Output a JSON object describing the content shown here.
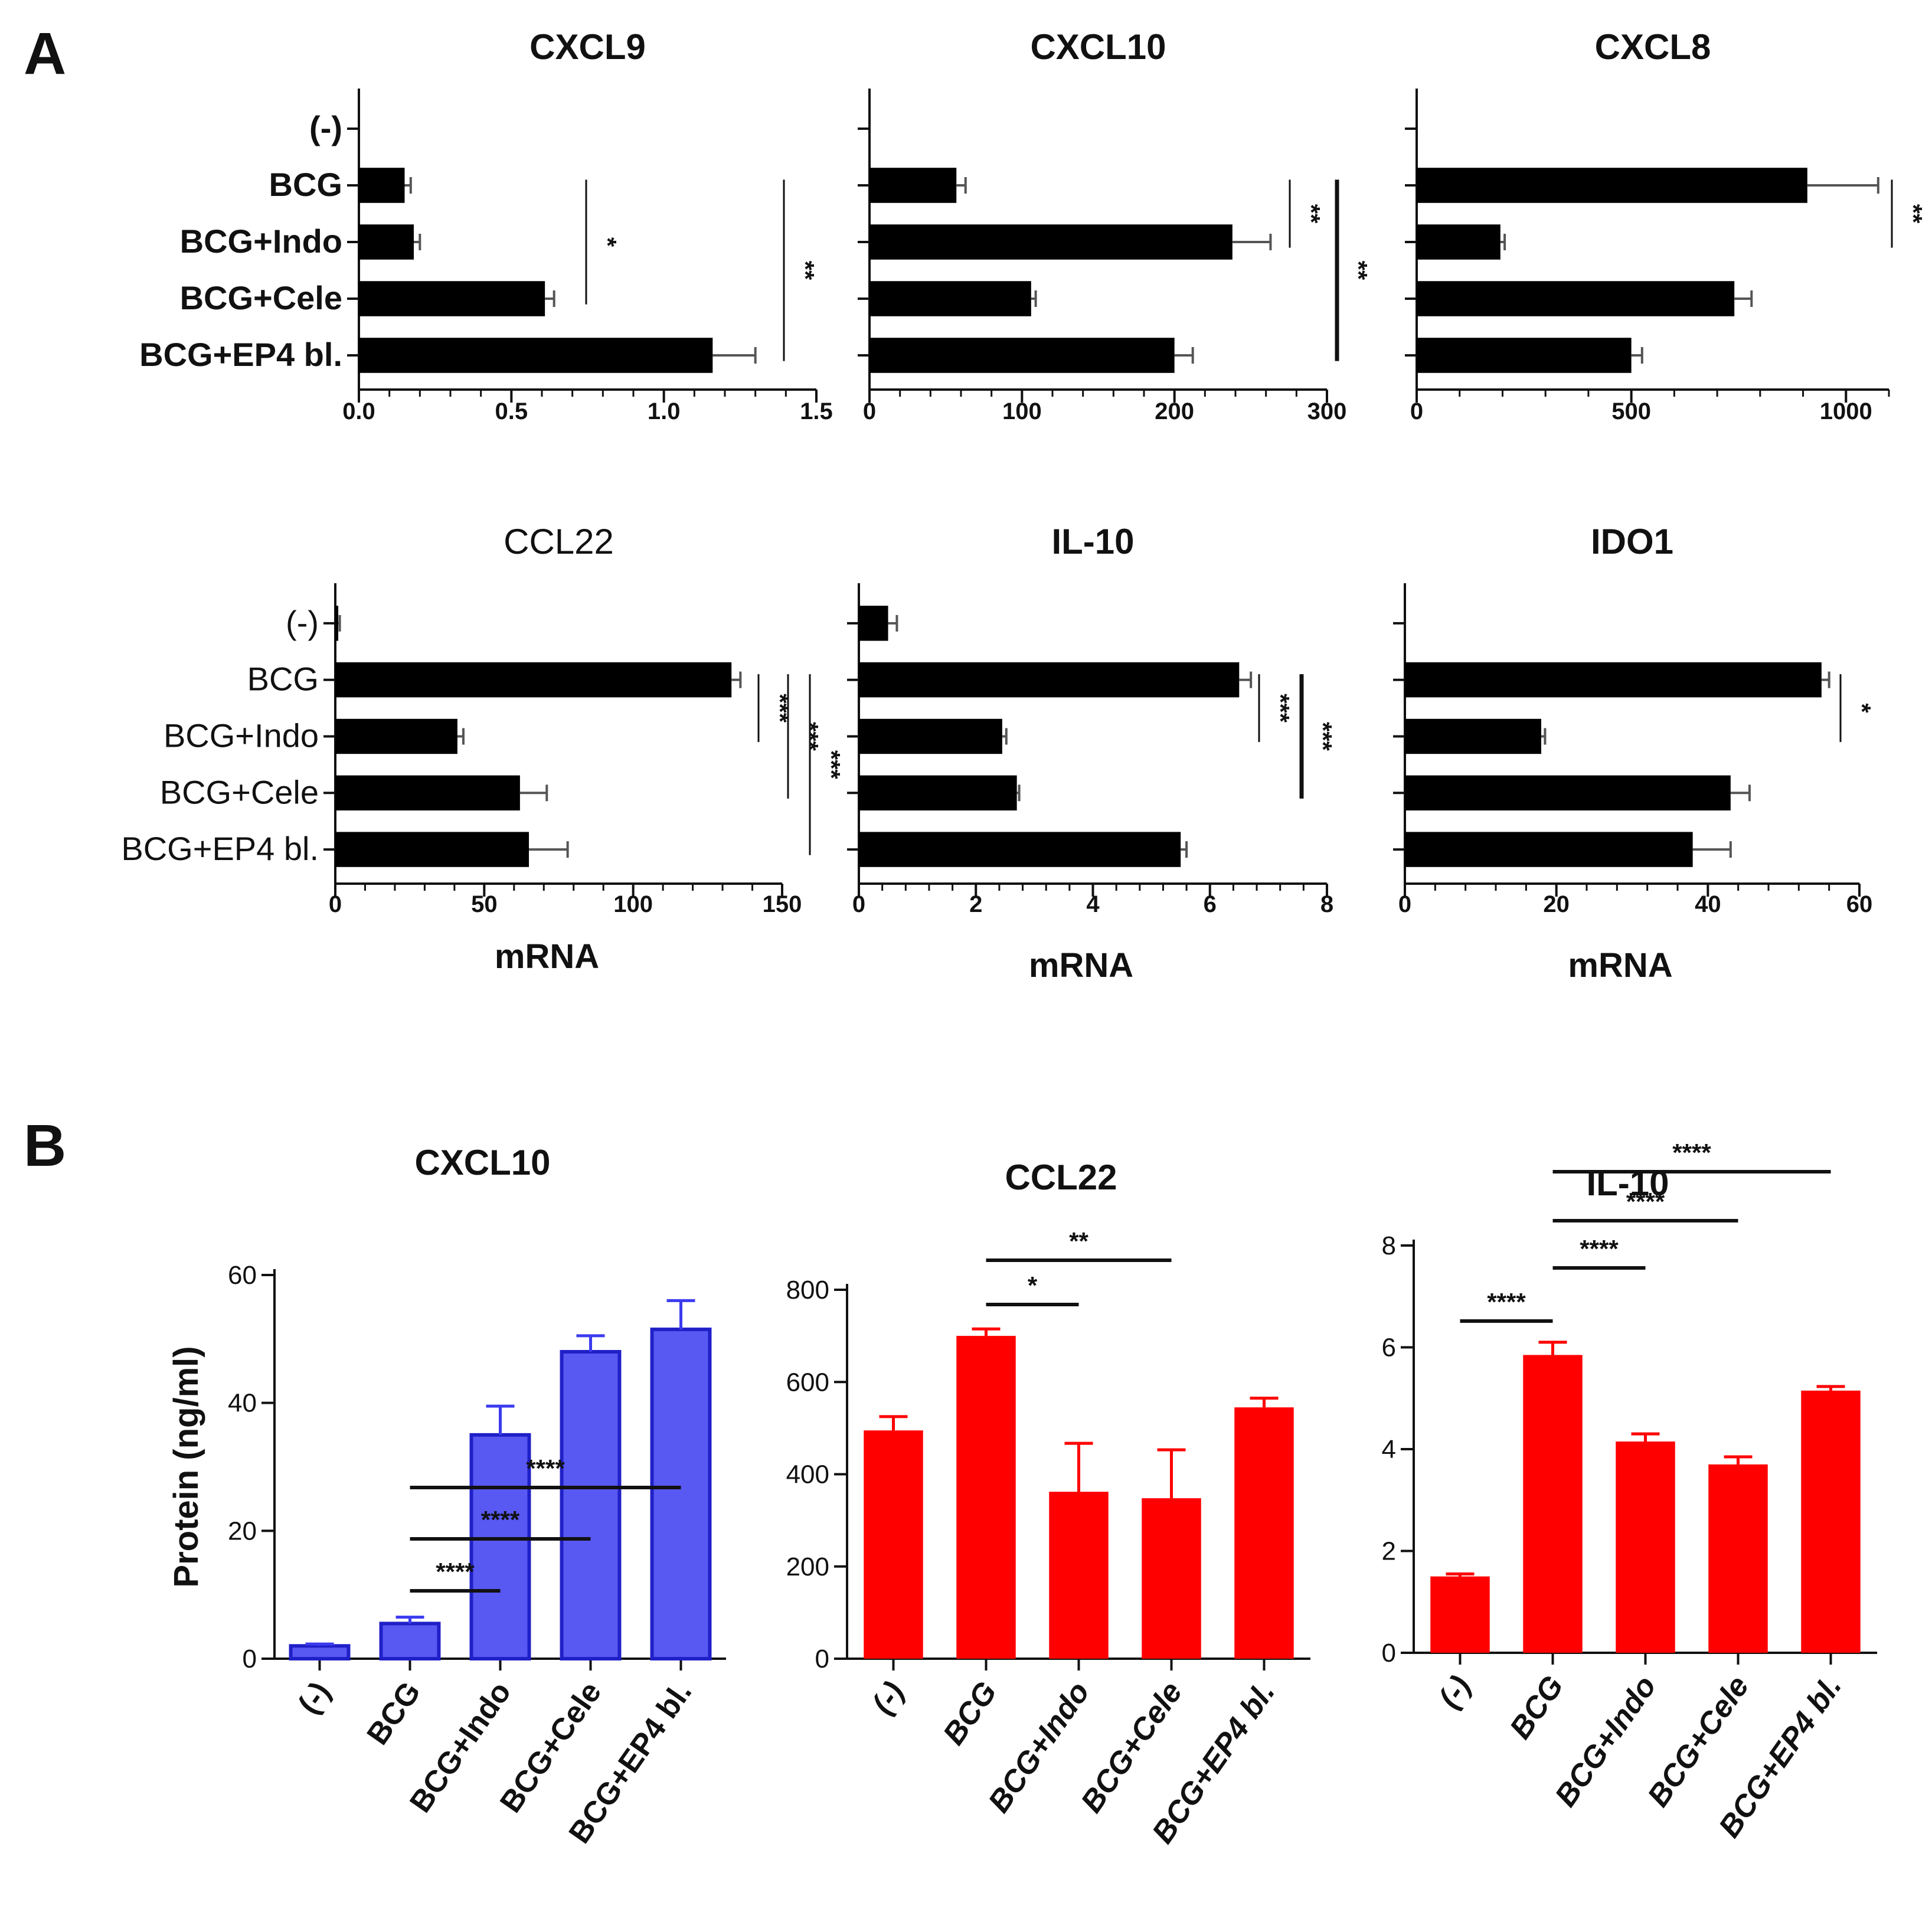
{
  "panels": {
    "a": "A",
    "b": "B"
  },
  "chart_data": [
    {
      "type": "bar",
      "orientation": "horizontal",
      "panel": "A",
      "title": "CXCL9",
      "categories": [
        "(-)",
        "BCG",
        "BCG+Indo",
        "BCG+Cele",
        "BCG+EP4 bl."
      ],
      "values": [
        0,
        0.15,
        0.18,
        0.61,
        1.16
      ],
      "errors": [
        0,
        0.02,
        0.02,
        0.03,
        0.14
      ],
      "xlim": [
        0,
        1.5
      ],
      "ticks": [
        "0.0",
        "0.5",
        "1.0",
        "1.5"
      ],
      "xlabel": "",
      "significance": [
        {
          "from": "BCG",
          "to": "BCG+Cele",
          "label": "*"
        },
        {
          "from": "BCG",
          "to": "BCG+EP4 bl.",
          "label": "**"
        }
      ]
    },
    {
      "type": "bar",
      "orientation": "horizontal",
      "panel": "A",
      "title": "CXCL10",
      "categories": [
        "(-)",
        "BCG",
        "BCG+Indo",
        "BCG+Cele",
        "BCG+EP4 bl."
      ],
      "values": [
        0,
        57,
        238,
        106,
        200
      ],
      "errors": [
        0,
        6,
        25,
        3,
        12
      ],
      "xlim": [
        0,
        300
      ],
      "ticks": [
        "0",
        "100",
        "200",
        "300"
      ],
      "xlabel": "",
      "significance": [
        {
          "from": "BCG",
          "to": "BCG+Indo",
          "label": "**"
        },
        {
          "from": "BCG",
          "to": "BCG+EP4 bl.",
          "label": "**"
        }
      ]
    },
    {
      "type": "bar",
      "orientation": "horizontal",
      "panel": "A",
      "title": "CXCL8",
      "categories": [
        "(-)",
        "BCG",
        "BCG+Indo",
        "BCG+Cele",
        "BCG+EP4 bl."
      ],
      "values": [
        0,
        910,
        195,
        740,
        500
      ],
      "errors": [
        0,
        165,
        10,
        40,
        25
      ],
      "xlim": [
        0,
        1100
      ],
      "ticks": [
        "0",
        "500",
        "1000"
      ],
      "xlabel": "",
      "significance": [
        {
          "from": "BCG",
          "to": "BCG+Indo",
          "label": "**"
        }
      ]
    },
    {
      "type": "bar",
      "orientation": "horizontal",
      "panel": "A",
      "title": "CCL22",
      "categories": [
        "(-)",
        "BCG",
        "BCG+Indo",
        "BCG+Cele",
        "BCG+EP4 bl."
      ],
      "values": [
        1,
        133,
        41,
        62,
        65
      ],
      "errors": [
        0.5,
        3,
        2,
        9,
        13
      ],
      "xlim": [
        0,
        150
      ],
      "ticks": [
        "0",
        "50",
        "100",
        "150"
      ],
      "xlabel": "mRNA",
      "significance": [
        {
          "from": "BCG",
          "to": "BCG+Indo",
          "label": "***"
        },
        {
          "from": "BCG",
          "to": "BCG+Cele",
          "label": "***"
        },
        {
          "from": "BCG",
          "to": "BCG+EP4 bl.",
          "label": "***"
        }
      ]
    },
    {
      "type": "bar",
      "orientation": "horizontal",
      "panel": "A",
      "title": "IL-10",
      "categories": [
        "(-)",
        "BCG",
        "BCG+Indo",
        "BCG+Cele",
        "BCG+EP4 bl."
      ],
      "values": [
        0.5,
        6.5,
        2.45,
        2.7,
        5.5
      ],
      "errors": [
        0.15,
        0.2,
        0.07,
        0.04,
        0.1
      ],
      "xlim": [
        0,
        8
      ],
      "ticks": [
        "0",
        "2",
        "4",
        "6",
        "8"
      ],
      "xlabel": "mRNA",
      "significance": [
        {
          "from": "BCG",
          "to": "BCG+Indo",
          "label": "***"
        },
        {
          "from": "BCG",
          "to": "BCG+Cele",
          "label": "***"
        }
      ]
    },
    {
      "type": "bar",
      "orientation": "horizontal",
      "panel": "A",
      "title": "IDO1",
      "categories": [
        "(-)",
        "BCG",
        "BCG+Indo",
        "BCG+Cele",
        "BCG+EP4 bl."
      ],
      "values": [
        0,
        55,
        18,
        43,
        38
      ],
      "errors": [
        0,
        1,
        0.5,
        2.5,
        5
      ],
      "xlim": [
        0,
        60
      ],
      "ticks": [
        "0",
        "20",
        "40",
        "60"
      ],
      "xlabel": "mRNA",
      "significance": [
        {
          "from": "BCG",
          "to": "BCG+Indo",
          "label": "*"
        }
      ]
    },
    {
      "type": "bar",
      "orientation": "vertical",
      "panel": "B",
      "title": "CXCL10",
      "categories": [
        "(-)",
        "BCG",
        "BCG+Indo",
        "BCG+Cele",
        "BCG+EP4 bl."
      ],
      "values": [
        2,
        5.5,
        35,
        48,
        51.5
      ],
      "errors": [
        0.3,
        1,
        4.5,
        2.5,
        4.5
      ],
      "ylim": [
        0,
        60
      ],
      "ticks": [
        "0",
        "20",
        "40",
        "60"
      ],
      "ylabel": "Protein (ng/ml)",
      "color": "#3b3bf0",
      "significance": [
        {
          "from": "BCG",
          "to": "BCG+Indo",
          "label": "****"
        },
        {
          "from": "BCG",
          "to": "BCG+Cele",
          "label": "****"
        },
        {
          "from": "BCG",
          "to": "BCG+EP4 bl.",
          "label": "****"
        }
      ]
    },
    {
      "type": "bar",
      "orientation": "vertical",
      "panel": "B",
      "title": "CCL22",
      "categories": [
        "(-)",
        "BCG",
        "BCG+Indo",
        "BCG+Cele",
        "BCG+EP4 bl."
      ],
      "values": [
        495,
        700,
        362,
        348,
        545
      ],
      "errors": [
        30,
        15,
        105,
        105,
        20
      ],
      "ylim": [
        0,
        800
      ],
      "ticks": [
        "0",
        "200",
        "400",
        "600",
        "800"
      ],
      "ylabel": "",
      "color": "#ff0000",
      "significance": [
        {
          "from": "BCG",
          "to": "BCG+Indo",
          "label": "*"
        },
        {
          "from": "BCG",
          "to": "BCG+Cele",
          "label": "**"
        }
      ]
    },
    {
      "type": "bar",
      "orientation": "vertical",
      "panel": "B",
      "title": "IL-10",
      "categories": [
        "(-)",
        "BCG",
        "BCG+Indo",
        "BCG+Cele",
        "BCG+EP4 bl."
      ],
      "values": [
        1.5,
        5.85,
        4.15,
        3.7,
        5.15
      ],
      "errors": [
        0.05,
        0.25,
        0.15,
        0.15,
        0.08
      ],
      "ylim": [
        0,
        8
      ],
      "ticks": [
        "0",
        "2",
        "4",
        "6",
        "8"
      ],
      "ylabel": "",
      "color": "#ff0000",
      "significance": [
        {
          "from": "(-)",
          "to": "BCG",
          "label": "****"
        },
        {
          "from": "BCG",
          "to": "BCG+Indo",
          "label": "****"
        },
        {
          "from": "BCG",
          "to": "BCG+Cele",
          "label": "****"
        },
        {
          "from": "BCG",
          "to": "BCG+EP4 bl.",
          "label": "****"
        }
      ]
    }
  ]
}
